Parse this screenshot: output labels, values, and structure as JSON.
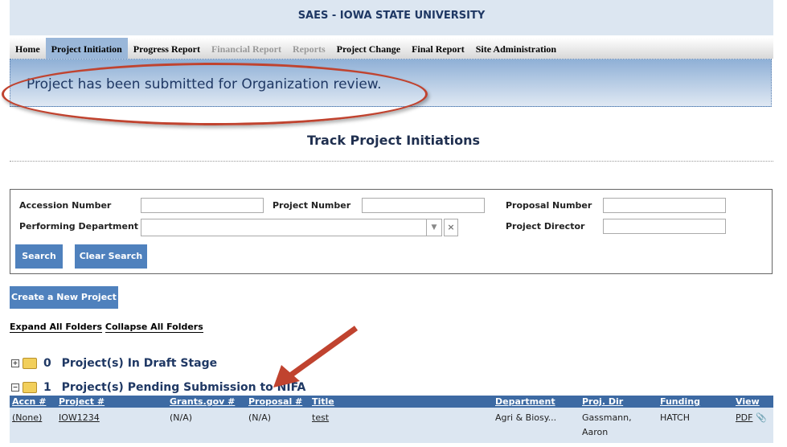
{
  "header": {
    "title": "SAES - IOWA STATE UNIVERSITY"
  },
  "nav": [
    {
      "label": "Home"
    },
    {
      "label": "Project Initiation",
      "active": true
    },
    {
      "label": "Progress Report"
    },
    {
      "label": "Financial Report",
      "disabled": true
    },
    {
      "label": "Reports",
      "disabled": true
    },
    {
      "label": "Project Change"
    },
    {
      "label": "Final Report"
    },
    {
      "label": "Site Administration"
    }
  ],
  "message": "Project has been submitted for Organization review.",
  "page_title": "Track Project Initiations",
  "search": {
    "accession_label": "Accession Number",
    "project_label": "Project Number",
    "proposal_label": "Proposal Number",
    "department_label": "Performing Department",
    "director_label": "Project Director",
    "search_button": "Search",
    "clear_button": "Clear Search"
  },
  "create_button": "Create a New Project",
  "expand_all": "Expand All Folders",
  "collapse_all": "Collapse All Folders",
  "groups": [
    {
      "count": "0",
      "label": "Project(s) In Draft Stage",
      "toggle": "+"
    },
    {
      "count": "1",
      "label": "Project(s) Pending Submission to NIFA",
      "toggle": "−"
    }
  ],
  "table": {
    "headers": [
      "Accn #",
      "Project #",
      "Grants.gov #",
      "Proposal #",
      "Title",
      "Department",
      "Proj. Dir",
      "Funding",
      "View"
    ],
    "rows": [
      {
        "accn": "(None)",
        "project": "IOW1234",
        "grants": "(N/A)",
        "proposal": "(N/A)",
        "title": "test",
        "department": "Agri & Biosy...",
        "director": "Gassmann, Aaron",
        "funding": "HATCH",
        "view": "PDF"
      }
    ]
  },
  "colors": {
    "accent": "#4f81bd",
    "annotation": "#c0432f"
  }
}
